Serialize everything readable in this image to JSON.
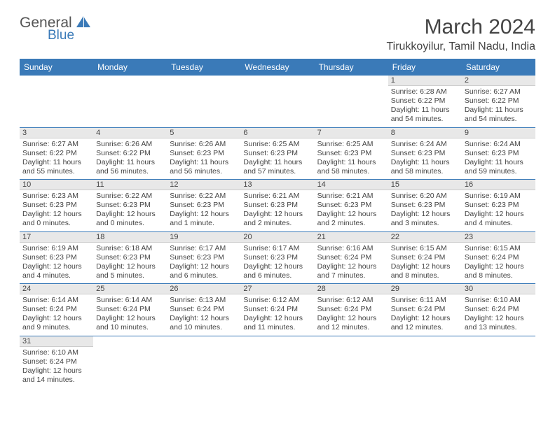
{
  "logo": {
    "primary": "General",
    "secondary": "Blue"
  },
  "title": "March 2024",
  "location": "Tirukkoyilur, Tamil Nadu, India",
  "colors": {
    "brand": "#3a7ab8",
    "header_bg": "#3a7ab8",
    "daynum_bg": "#e8e8e8",
    "text": "#444444"
  },
  "day_names": [
    "Sunday",
    "Monday",
    "Tuesday",
    "Wednesday",
    "Thursday",
    "Friday",
    "Saturday"
  ],
  "weeks": [
    [
      null,
      null,
      null,
      null,
      null,
      {
        "d": "1",
        "sr": "Sunrise: 6:28 AM",
        "ss": "Sunset: 6:22 PM",
        "dl": "Daylight: 11 hours and 54 minutes."
      },
      {
        "d": "2",
        "sr": "Sunrise: 6:27 AM",
        "ss": "Sunset: 6:22 PM",
        "dl": "Daylight: 11 hours and 54 minutes."
      }
    ],
    [
      {
        "d": "3",
        "sr": "Sunrise: 6:27 AM",
        "ss": "Sunset: 6:22 PM",
        "dl": "Daylight: 11 hours and 55 minutes."
      },
      {
        "d": "4",
        "sr": "Sunrise: 6:26 AM",
        "ss": "Sunset: 6:22 PM",
        "dl": "Daylight: 11 hours and 56 minutes."
      },
      {
        "d": "5",
        "sr": "Sunrise: 6:26 AM",
        "ss": "Sunset: 6:23 PM",
        "dl": "Daylight: 11 hours and 56 minutes."
      },
      {
        "d": "6",
        "sr": "Sunrise: 6:25 AM",
        "ss": "Sunset: 6:23 PM",
        "dl": "Daylight: 11 hours and 57 minutes."
      },
      {
        "d": "7",
        "sr": "Sunrise: 6:25 AM",
        "ss": "Sunset: 6:23 PM",
        "dl": "Daylight: 11 hours and 58 minutes."
      },
      {
        "d": "8",
        "sr": "Sunrise: 6:24 AM",
        "ss": "Sunset: 6:23 PM",
        "dl": "Daylight: 11 hours and 58 minutes."
      },
      {
        "d": "9",
        "sr": "Sunrise: 6:24 AM",
        "ss": "Sunset: 6:23 PM",
        "dl": "Daylight: 11 hours and 59 minutes."
      }
    ],
    [
      {
        "d": "10",
        "sr": "Sunrise: 6:23 AM",
        "ss": "Sunset: 6:23 PM",
        "dl": "Daylight: 12 hours and 0 minutes."
      },
      {
        "d": "11",
        "sr": "Sunrise: 6:22 AM",
        "ss": "Sunset: 6:23 PM",
        "dl": "Daylight: 12 hours and 0 minutes."
      },
      {
        "d": "12",
        "sr": "Sunrise: 6:22 AM",
        "ss": "Sunset: 6:23 PM",
        "dl": "Daylight: 12 hours and 1 minute."
      },
      {
        "d": "13",
        "sr": "Sunrise: 6:21 AM",
        "ss": "Sunset: 6:23 PM",
        "dl": "Daylight: 12 hours and 2 minutes."
      },
      {
        "d": "14",
        "sr": "Sunrise: 6:21 AM",
        "ss": "Sunset: 6:23 PM",
        "dl": "Daylight: 12 hours and 2 minutes."
      },
      {
        "d": "15",
        "sr": "Sunrise: 6:20 AM",
        "ss": "Sunset: 6:23 PM",
        "dl": "Daylight: 12 hours and 3 minutes."
      },
      {
        "d": "16",
        "sr": "Sunrise: 6:19 AM",
        "ss": "Sunset: 6:23 PM",
        "dl": "Daylight: 12 hours and 4 minutes."
      }
    ],
    [
      {
        "d": "17",
        "sr": "Sunrise: 6:19 AM",
        "ss": "Sunset: 6:23 PM",
        "dl": "Daylight: 12 hours and 4 minutes."
      },
      {
        "d": "18",
        "sr": "Sunrise: 6:18 AM",
        "ss": "Sunset: 6:23 PM",
        "dl": "Daylight: 12 hours and 5 minutes."
      },
      {
        "d": "19",
        "sr": "Sunrise: 6:17 AM",
        "ss": "Sunset: 6:23 PM",
        "dl": "Daylight: 12 hours and 6 minutes."
      },
      {
        "d": "20",
        "sr": "Sunrise: 6:17 AM",
        "ss": "Sunset: 6:23 PM",
        "dl": "Daylight: 12 hours and 6 minutes."
      },
      {
        "d": "21",
        "sr": "Sunrise: 6:16 AM",
        "ss": "Sunset: 6:24 PM",
        "dl": "Daylight: 12 hours and 7 minutes."
      },
      {
        "d": "22",
        "sr": "Sunrise: 6:15 AM",
        "ss": "Sunset: 6:24 PM",
        "dl": "Daylight: 12 hours and 8 minutes."
      },
      {
        "d": "23",
        "sr": "Sunrise: 6:15 AM",
        "ss": "Sunset: 6:24 PM",
        "dl": "Daylight: 12 hours and 8 minutes."
      }
    ],
    [
      {
        "d": "24",
        "sr": "Sunrise: 6:14 AM",
        "ss": "Sunset: 6:24 PM",
        "dl": "Daylight: 12 hours and 9 minutes."
      },
      {
        "d": "25",
        "sr": "Sunrise: 6:14 AM",
        "ss": "Sunset: 6:24 PM",
        "dl": "Daylight: 12 hours and 10 minutes."
      },
      {
        "d": "26",
        "sr": "Sunrise: 6:13 AM",
        "ss": "Sunset: 6:24 PM",
        "dl": "Daylight: 12 hours and 10 minutes."
      },
      {
        "d": "27",
        "sr": "Sunrise: 6:12 AM",
        "ss": "Sunset: 6:24 PM",
        "dl": "Daylight: 12 hours and 11 minutes."
      },
      {
        "d": "28",
        "sr": "Sunrise: 6:12 AM",
        "ss": "Sunset: 6:24 PM",
        "dl": "Daylight: 12 hours and 12 minutes."
      },
      {
        "d": "29",
        "sr": "Sunrise: 6:11 AM",
        "ss": "Sunset: 6:24 PM",
        "dl": "Daylight: 12 hours and 12 minutes."
      },
      {
        "d": "30",
        "sr": "Sunrise: 6:10 AM",
        "ss": "Sunset: 6:24 PM",
        "dl": "Daylight: 12 hours and 13 minutes."
      }
    ],
    [
      {
        "d": "31",
        "sr": "Sunrise: 6:10 AM",
        "ss": "Sunset: 6:24 PM",
        "dl": "Daylight: 12 hours and 14 minutes."
      },
      null,
      null,
      null,
      null,
      null,
      null
    ]
  ]
}
